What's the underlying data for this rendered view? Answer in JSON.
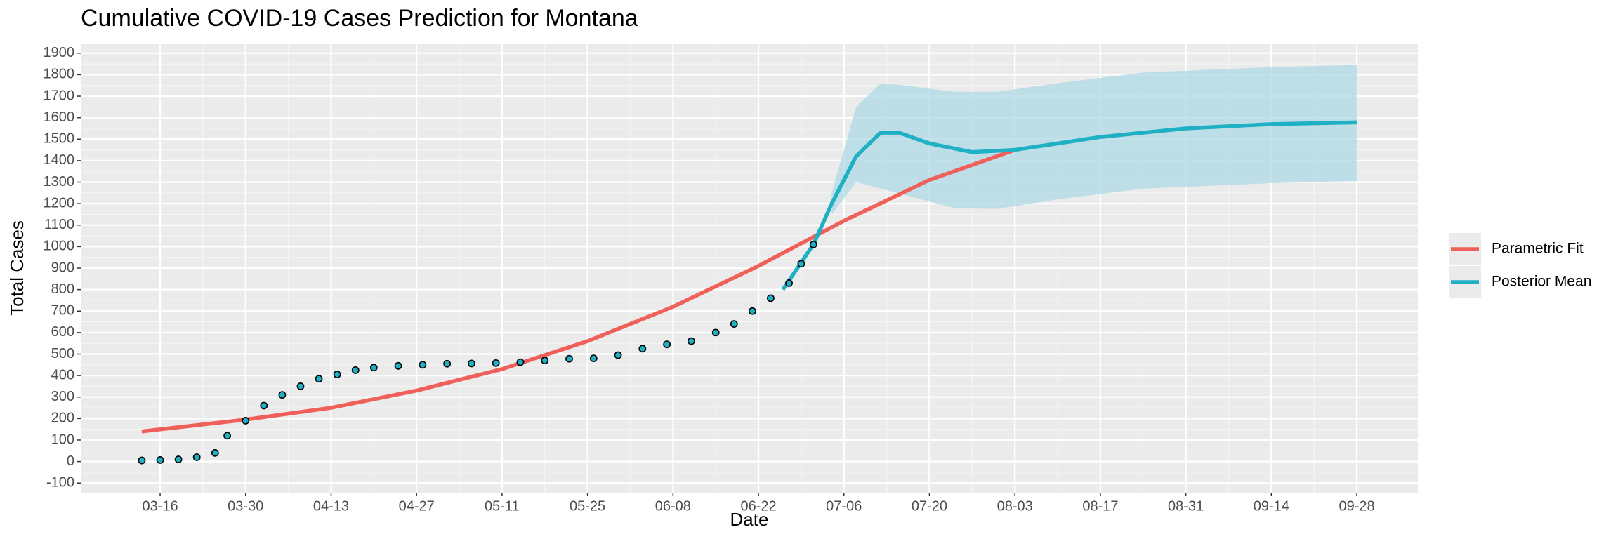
{
  "chart_data": {
    "type": "line",
    "title": "Cumulative COVID-19 Cases Prediction for Montana",
    "x_label": "Date",
    "y_label": "Total Cases",
    "xlim": [
      "03-03",
      "10-08"
    ],
    "xticks": [
      "03-16",
      "03-30",
      "04-13",
      "04-27",
      "05-11",
      "05-25",
      "06-08",
      "06-22",
      "07-06",
      "07-20",
      "08-03",
      "08-17",
      "08-31",
      "09-14",
      "09-28"
    ],
    "ylim": [
      -145,
      1945
    ],
    "yticks": [
      -100,
      0,
      100,
      200,
      300,
      400,
      500,
      600,
      700,
      800,
      900,
      1000,
      1100,
      1200,
      1300,
      1400,
      1500,
      1600,
      1700,
      1800,
      1900
    ],
    "grid": true,
    "legend_position": "right",
    "series": [
      {
        "name": "Parametric Fit",
        "color": "#f0605a",
        "x": [
          "03-13",
          "03-30",
          "04-13",
          "04-27",
          "05-11",
          "05-25",
          "06-08",
          "06-22",
          "07-06",
          "07-20",
          "08-03"
        ],
        "values": [
          140,
          195,
          250,
          330,
          430,
          560,
          720,
          910,
          1120,
          1310,
          1450
        ]
      },
      {
        "name": "Posterior Mean",
        "color": "#1fb0c4",
        "x": [
          "06-26",
          "07-01",
          "07-04",
          "07-08",
          "07-12",
          "07-15",
          "07-20",
          "07-27",
          "08-03",
          "08-17",
          "08-31",
          "09-14",
          "09-28"
        ],
        "values": [
          800,
          1010,
          1200,
          1420,
          1530,
          1530,
          1480,
          1440,
          1450,
          1510,
          1550,
          1570,
          1578
        ]
      }
    ],
    "band": {
      "color": "#add8e6",
      "x": [
        "07-04",
        "07-08",
        "07-12",
        "07-16",
        "07-24",
        "07-31",
        "08-10",
        "08-24",
        "09-14",
        "09-28"
      ],
      "lower": [
        1150,
        1300,
        1270,
        1240,
        1180,
        1175,
        1220,
        1270,
        1295,
        1305
      ],
      "upper": [
        1250,
        1650,
        1760,
        1750,
        1720,
        1720,
        1760,
        1810,
        1835,
        1845
      ]
    },
    "points": {
      "color": "#1fb0c4",
      "x": [
        "03-13",
        "03-16",
        "03-19",
        "03-22",
        "03-25",
        "03-27",
        "03-30",
        "04-02",
        "04-05",
        "04-08",
        "04-11",
        "04-14",
        "04-17",
        "04-20",
        "04-24",
        "04-28",
        "05-02",
        "05-06",
        "05-10",
        "05-14",
        "05-18",
        "05-22",
        "05-26",
        "05-30",
        "06-03",
        "06-07",
        "06-11",
        "06-15",
        "06-18",
        "06-21",
        "06-24",
        "06-27",
        "06-29",
        "07-01"
      ],
      "values": [
        5,
        7,
        10,
        20,
        40,
        120,
        190,
        260,
        310,
        350,
        385,
        405,
        425,
        437,
        445,
        450,
        455,
        456,
        458,
        462,
        470,
        478,
        480,
        495,
        525,
        545,
        560,
        600,
        640,
        700,
        760,
        830,
        920,
        1010
      ]
    }
  }
}
